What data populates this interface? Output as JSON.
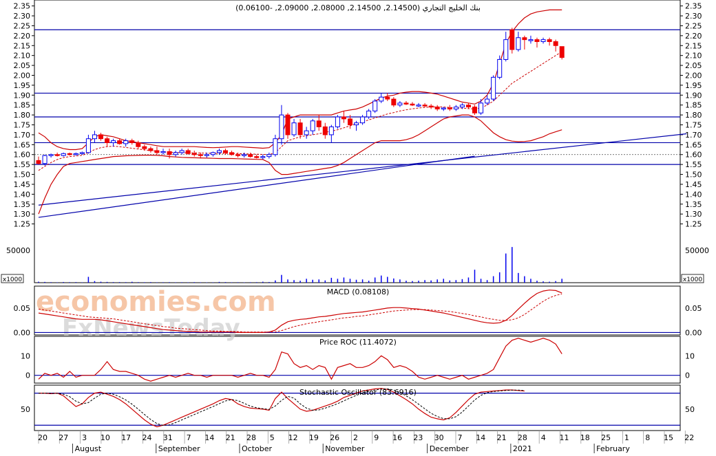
{
  "chart_data": {
    "type": "candlestick",
    "title": "بنك الخليج التجاري (2.14500, 2.14500, 2.08000, 2.09000, -0.06100)",
    "watermark": [
      "economies.com",
      "FxNewsToday"
    ],
    "colors": {
      "up": "#0000ee",
      "down": "#ee0000",
      "line": "#0000aa",
      "band": "#cc0000",
      "grid": "#888888",
      "frame": "#000000"
    },
    "price_axis": {
      "min": 1.2,
      "max": 2.38,
      "ticks": [
        "1.25",
        "1.30",
        "1.35",
        "1.40",
        "1.45",
        "1.50",
        "1.55",
        "1.60",
        "1.65",
        "1.70",
        "1.75",
        "1.80",
        "1.85",
        "1.90",
        "1.95",
        "2.00",
        "2.05",
        "2.10",
        "2.15",
        "2.20",
        "2.25",
        "2.30",
        "2.35"
      ]
    },
    "horizontal_levels": [
      2.23,
      1.91,
      1.79,
      1.66,
      1.55,
      1.6
    ],
    "trend_lines": [
      {
        "from": [
          0,
          1.345
        ],
        "to": [
          104,
          1.705
        ]
      },
      {
        "from": [
          0,
          1.283
        ],
        "to": [
          70,
          1.592
        ]
      }
    ],
    "candles": [
      [
        1.57,
        1.59,
        1.55,
        1.555
      ],
      [
        1.555,
        1.6,
        1.545,
        1.595
      ],
      [
        1.595,
        1.605,
        1.585,
        1.6
      ],
      [
        1.6,
        1.61,
        1.59,
        1.595
      ],
      [
        1.595,
        1.61,
        1.59,
        1.605
      ],
      [
        1.605,
        1.61,
        1.595,
        1.6
      ],
      [
        1.6,
        1.61,
        1.595,
        1.605
      ],
      [
        1.605,
        1.615,
        1.6,
        1.61
      ],
      [
        1.61,
        1.7,
        1.605,
        1.68
      ],
      [
        1.68,
        1.72,
        1.66,
        1.7
      ],
      [
        1.7,
        1.71,
        1.67,
        1.68
      ],
      [
        1.68,
        1.69,
        1.64,
        1.66
      ],
      [
        1.66,
        1.68,
        1.64,
        1.67
      ],
      [
        1.67,
        1.68,
        1.65,
        1.655
      ],
      [
        1.655,
        1.68,
        1.64,
        1.67
      ],
      [
        1.67,
        1.68,
        1.65,
        1.66
      ],
      [
        1.66,
        1.67,
        1.63,
        1.64
      ],
      [
        1.64,
        1.65,
        1.62,
        1.63
      ],
      [
        1.63,
        1.64,
        1.61,
        1.62
      ],
      [
        1.62,
        1.64,
        1.6,
        1.61
      ],
      [
        1.61,
        1.63,
        1.6,
        1.615
      ],
      [
        1.615,
        1.63,
        1.58,
        1.6
      ],
      [
        1.6,
        1.62,
        1.59,
        1.61
      ],
      [
        1.61,
        1.63,
        1.6,
        1.62
      ],
      [
        1.62,
        1.63,
        1.6,
        1.605
      ],
      [
        1.605,
        1.62,
        1.59,
        1.6
      ],
      [
        1.6,
        1.61,
        1.58,
        1.595
      ],
      [
        1.595,
        1.61,
        1.585,
        1.6
      ],
      [
        1.6,
        1.615,
        1.59,
        1.61
      ],
      [
        1.61,
        1.63,
        1.6,
        1.62
      ],
      [
        1.62,
        1.63,
        1.6,
        1.61
      ],
      [
        1.61,
        1.62,
        1.595,
        1.6
      ],
      [
        1.6,
        1.61,
        1.585,
        1.595
      ],
      [
        1.595,
        1.61,
        1.585,
        1.6
      ],
      [
        1.6,
        1.61,
        1.585,
        1.59
      ],
      [
        1.59,
        1.6,
        1.58,
        1.585
      ],
      [
        1.585,
        1.6,
        1.575,
        1.59
      ],
      [
        1.59,
        1.61,
        1.58,
        1.6
      ],
      [
        1.6,
        1.7,
        1.59,
        1.68
      ],
      [
        1.68,
        1.85,
        1.65,
        1.8
      ],
      [
        1.8,
        1.81,
        1.68,
        1.7
      ],
      [
        1.7,
        1.78,
        1.69,
        1.76
      ],
      [
        1.76,
        1.78,
        1.68,
        1.7
      ],
      [
        1.7,
        1.74,
        1.68,
        1.72
      ],
      [
        1.72,
        1.78,
        1.7,
        1.77
      ],
      [
        1.77,
        1.8,
        1.72,
        1.74
      ],
      [
        1.74,
        1.76,
        1.68,
        1.7
      ],
      [
        1.7,
        1.75,
        1.66,
        1.74
      ],
      [
        1.74,
        1.8,
        1.73,
        1.79
      ],
      [
        1.79,
        1.82,
        1.76,
        1.78
      ],
      [
        1.78,
        1.8,
        1.73,
        1.75
      ],
      [
        1.75,
        1.77,
        1.72,
        1.76
      ],
      [
        1.76,
        1.8,
        1.75,
        1.79
      ],
      [
        1.79,
        1.83,
        1.78,
        1.82
      ],
      [
        1.82,
        1.88,
        1.81,
        1.87
      ],
      [
        1.87,
        1.91,
        1.86,
        1.89
      ],
      [
        1.89,
        1.91,
        1.87,
        1.88
      ],
      [
        1.88,
        1.89,
        1.84,
        1.85
      ],
      [
        1.85,
        1.87,
        1.84,
        1.86
      ],
      [
        1.86,
        1.87,
        1.85,
        1.855
      ],
      [
        1.855,
        1.865,
        1.845,
        1.85
      ],
      [
        1.85,
        1.86,
        1.84,
        1.85
      ],
      [
        1.85,
        1.86,
        1.84,
        1.845
      ],
      [
        1.845,
        1.855,
        1.83,
        1.84
      ],
      [
        1.84,
        1.85,
        1.82,
        1.83
      ],
      [
        1.83,
        1.84,
        1.82,
        1.835
      ],
      [
        1.835,
        1.85,
        1.82,
        1.83
      ],
      [
        1.83,
        1.85,
        1.82,
        1.84
      ],
      [
        1.84,
        1.86,
        1.83,
        1.85
      ],
      [
        1.85,
        1.86,
        1.83,
        1.84
      ],
      [
        1.84,
        1.85,
        1.8,
        1.81
      ],
      [
        1.81,
        1.88,
        1.8,
        1.86
      ],
      [
        1.86,
        1.9,
        1.85,
        1.88
      ],
      [
        1.88,
        2.0,
        1.87,
        1.99
      ],
      [
        1.99,
        2.1,
        1.98,
        2.08
      ],
      [
        2.08,
        2.22,
        2.07,
        2.18
      ],
      [
        2.23,
        2.24,
        2.11,
        2.13
      ],
      [
        2.13,
        2.22,
        2.12,
        2.19
      ],
      [
        2.19,
        2.2,
        2.13,
        2.18
      ],
      [
        2.18,
        2.2,
        2.16,
        2.18
      ],
      [
        2.18,
        2.19,
        2.14,
        2.17
      ],
      [
        2.17,
        2.19,
        2.16,
        2.18
      ],
      [
        2.18,
        2.19,
        2.15,
        2.17
      ],
      [
        2.17,
        2.18,
        2.12,
        2.15
      ],
      [
        2.145,
        2.145,
        2.08,
        2.09
      ]
    ],
    "bollinger": {
      "upper": [
        1.71,
        1.69,
        1.66,
        1.64,
        1.63,
        1.625,
        1.625,
        1.63,
        1.66,
        1.69,
        1.7,
        1.695,
        1.69,
        1.68,
        1.67,
        1.665,
        1.66,
        1.655,
        1.65,
        1.645,
        1.64,
        1.64,
        1.64,
        1.64,
        1.64,
        1.64,
        1.638,
        1.636,
        1.635,
        1.636,
        1.638,
        1.64,
        1.64,
        1.638,
        1.636,
        1.634,
        1.632,
        1.635,
        1.66,
        1.7,
        1.78,
        1.79,
        1.8,
        1.8,
        1.8,
        1.8,
        1.8,
        1.8,
        1.81,
        1.82,
        1.825,
        1.83,
        1.84,
        1.855,
        1.87,
        1.885,
        1.895,
        1.9,
        1.91,
        1.915,
        1.918,
        1.918,
        1.915,
        1.91,
        1.905,
        1.895,
        1.885,
        1.875,
        1.865,
        1.86,
        1.855,
        1.87,
        1.9,
        1.96,
        2.06,
        2.16,
        2.22,
        2.26,
        2.29,
        2.31,
        2.32,
        2.325,
        2.33,
        2.33,
        2.33
      ],
      "lower": [
        1.3,
        1.38,
        1.45,
        1.5,
        1.54,
        1.555,
        1.56,
        1.565,
        1.57,
        1.575,
        1.58,
        1.585,
        1.59,
        1.592,
        1.594,
        1.595,
        1.596,
        1.597,
        1.597,
        1.596,
        1.594,
        1.59,
        1.588,
        1.586,
        1.585,
        1.584,
        1.583,
        1.582,
        1.581,
        1.58,
        1.58,
        1.58,
        1.579,
        1.578,
        1.577,
        1.576,
        1.575,
        1.56,
        1.52,
        1.5,
        1.5,
        1.505,
        1.51,
        1.515,
        1.52,
        1.525,
        1.53,
        1.535,
        1.545,
        1.56,
        1.58,
        1.6,
        1.62,
        1.64,
        1.66,
        1.67,
        1.67,
        1.67,
        1.67,
        1.675,
        1.685,
        1.7,
        1.72,
        1.74,
        1.76,
        1.78,
        1.79,
        1.795,
        1.8,
        1.8,
        1.79,
        1.77,
        1.74,
        1.71,
        1.69,
        1.675,
        1.668,
        1.665,
        1.666,
        1.67,
        1.68,
        1.69,
        1.705,
        1.715,
        1.725
      ],
      "middle": [
        1.52,
        1.54,
        1.56,
        1.575,
        1.585,
        1.59,
        1.593,
        1.596,
        1.61,
        1.625,
        1.635,
        1.64,
        1.642,
        1.64,
        1.636,
        1.632,
        1.628,
        1.624,
        1.62,
        1.617,
        1.614,
        1.612,
        1.611,
        1.61,
        1.609,
        1.609,
        1.608,
        1.607,
        1.606,
        1.606,
        1.606,
        1.606,
        1.605,
        1.604,
        1.603,
        1.602,
        1.601,
        1.6,
        1.61,
        1.64,
        1.67,
        1.68,
        1.69,
        1.695,
        1.7,
        1.705,
        1.712,
        1.718,
        1.725,
        1.735,
        1.745,
        1.755,
        1.765,
        1.775,
        1.785,
        1.795,
        1.805,
        1.812,
        1.82,
        1.826,
        1.831,
        1.835,
        1.838,
        1.84,
        1.841,
        1.84,
        1.838,
        1.836,
        1.834,
        1.832,
        1.83,
        1.835,
        1.85,
        1.87,
        1.9,
        1.93,
        1.96,
        1.98,
        2.0,
        2.02,
        2.04,
        2.06,
        2.08,
        2.1,
        2.12
      ]
    },
    "volume": {
      "label": "50000",
      "scale_label": "x1000",
      "max": 70000,
      "values": [
        1500,
        1200,
        800,
        600,
        1000,
        800,
        900,
        600,
        9000,
        2500,
        1500,
        1200,
        900,
        900,
        800,
        1400,
        800,
        700,
        900,
        600,
        700,
        800,
        600,
        700,
        600,
        800,
        600,
        500,
        600,
        1200,
        900,
        600,
        700,
        500,
        700,
        800,
        1500,
        1000,
        3500,
        12000,
        5000,
        4000,
        3000,
        6000,
        4500,
        5000,
        3500,
        7500,
        6000,
        8000,
        6000,
        4500,
        5000,
        3000,
        8000,
        11000,
        9000,
        6500,
        5000,
        3000,
        2500,
        3000,
        4000,
        3500,
        5000,
        6000,
        3500,
        4000,
        5500,
        8000,
        20000,
        6000,
        4000,
        10000,
        16000,
        45000,
        55000,
        15000,
        10000,
        6000,
        3000,
        2000,
        1500,
        2500,
        6000
      ]
    },
    "macd": {
      "label": "MACD (0.08108)",
      "ticks": [
        "0.00",
        "0.05"
      ],
      "min": -0.005,
      "max": 0.095,
      "macd": [
        0.04,
        0.038,
        0.036,
        0.034,
        0.032,
        0.03,
        0.028,
        0.027,
        0.027,
        0.027,
        0.026,
        0.024,
        0.022,
        0.02,
        0.018,
        0.016,
        0.014,
        0.012,
        0.01,
        0.008,
        0.006,
        0.005,
        0.004,
        0.003,
        0.002,
        0.002,
        0.001,
        0.001,
        0.001,
        0.001,
        0.001,
        0.001,
        0.0,
        0.0,
        0.0,
        0.0,
        0.0,
        0.001,
        0.005,
        0.015,
        0.022,
        0.025,
        0.027,
        0.028,
        0.03,
        0.032,
        0.033,
        0.035,
        0.037,
        0.039,
        0.04,
        0.041,
        0.042,
        0.044,
        0.046,
        0.048,
        0.05,
        0.051,
        0.051,
        0.05,
        0.049,
        0.048,
        0.046,
        0.044,
        0.042,
        0.04,
        0.037,
        0.034,
        0.031,
        0.028,
        0.025,
        0.022,
        0.02,
        0.019,
        0.02,
        0.025,
        0.035,
        0.048,
        0.06,
        0.071,
        0.08,
        0.085,
        0.087,
        0.086,
        0.081
      ],
      "signal": [
        0.048,
        0.046,
        0.044,
        0.042,
        0.04,
        0.038,
        0.036,
        0.034,
        0.032,
        0.031,
        0.03,
        0.029,
        0.028,
        0.026,
        0.024,
        0.022,
        0.02,
        0.018,
        0.016,
        0.014,
        0.012,
        0.011,
        0.009,
        0.008,
        0.007,
        0.006,
        0.005,
        0.004,
        0.003,
        0.003,
        0.002,
        0.002,
        0.002,
        0.001,
        0.001,
        0.001,
        0.001,
        0.001,
        0.001,
        0.004,
        0.008,
        0.012,
        0.015,
        0.018,
        0.02,
        0.022,
        0.024,
        0.026,
        0.028,
        0.03,
        0.031,
        0.033,
        0.034,
        0.036,
        0.038,
        0.04,
        0.042,
        0.044,
        0.045,
        0.046,
        0.047,
        0.047,
        0.047,
        0.046,
        0.045,
        0.044,
        0.043,
        0.041,
        0.039,
        0.037,
        0.034,
        0.032,
        0.029,
        0.027,
        0.025,
        0.025,
        0.026,
        0.03,
        0.037,
        0.046,
        0.055,
        0.064,
        0.071,
        0.076,
        0.079
      ]
    },
    "roc": {
      "label": "Price ROC (11.4072)",
      "ticks": [
        "0",
        "10"
      ],
      "min": -4,
      "max": 20,
      "values": [
        -2,
        1,
        0,
        1,
        -1,
        2,
        -1,
        0,
        0,
        0,
        3,
        7,
        3,
        2,
        2,
        1,
        0,
        -2,
        -3,
        -2,
        -1,
        0,
        -1,
        0,
        1,
        0,
        0,
        -1,
        0,
        0,
        0,
        0,
        -1,
        0,
        1,
        0,
        0,
        -1,
        3,
        12,
        11,
        6,
        4,
        5,
        3,
        5,
        4,
        -2,
        4,
        5,
        6,
        4,
        4,
        5,
        7,
        10,
        8,
        4,
        5,
        4,
        2,
        -1,
        -2,
        -1,
        0,
        -1,
        -2,
        -1,
        0,
        -2,
        -1,
        0,
        1,
        3,
        9,
        15,
        18,
        19,
        18,
        17,
        18,
        19,
        18,
        16,
        11
      ]
    },
    "stochastic": {
      "label": "Stochastic Oscillator (83.6916)",
      "ticks": [
        "50"
      ],
      "min": 10,
      "max": 95,
      "k": [
        80,
        80,
        79,
        80,
        75,
        65,
        55,
        60,
        72,
        80,
        82,
        78,
        74,
        68,
        60,
        50,
        40,
        30,
        22,
        17,
        20,
        25,
        30,
        35,
        40,
        45,
        50,
        55,
        60,
        66,
        70,
        68,
        60,
        55,
        52,
        51,
        50,
        48,
        70,
        82,
        70,
        60,
        50,
        46,
        48,
        52,
        56,
        60,
        65,
        72,
        76,
        80,
        84,
        86,
        88,
        89,
        87,
        82,
        75,
        68,
        60,
        50,
        42,
        35,
        32,
        30,
        34,
        44,
        56,
        68,
        78,
        82,
        83,
        84,
        85,
        86,
        86,
        85,
        84
      ]
    },
    "stoch_levels": [
      80,
      20
    ],
    "x_axis": {
      "day_ticks": [
        "20",
        "27",
        "3",
        "10",
        "17",
        "24",
        "31",
        "7",
        "14",
        "21",
        "28",
        "5",
        "12",
        "19",
        "26",
        "2",
        "9",
        "16",
        "23",
        "30",
        "7",
        "14",
        "21",
        "28",
        "4",
        "11",
        "18",
        "25",
        "1",
        "8",
        "15",
        "22"
      ],
      "months": [
        "August",
        "September",
        "October",
        "November",
        "December",
        "2021",
        "February"
      ]
    }
  }
}
